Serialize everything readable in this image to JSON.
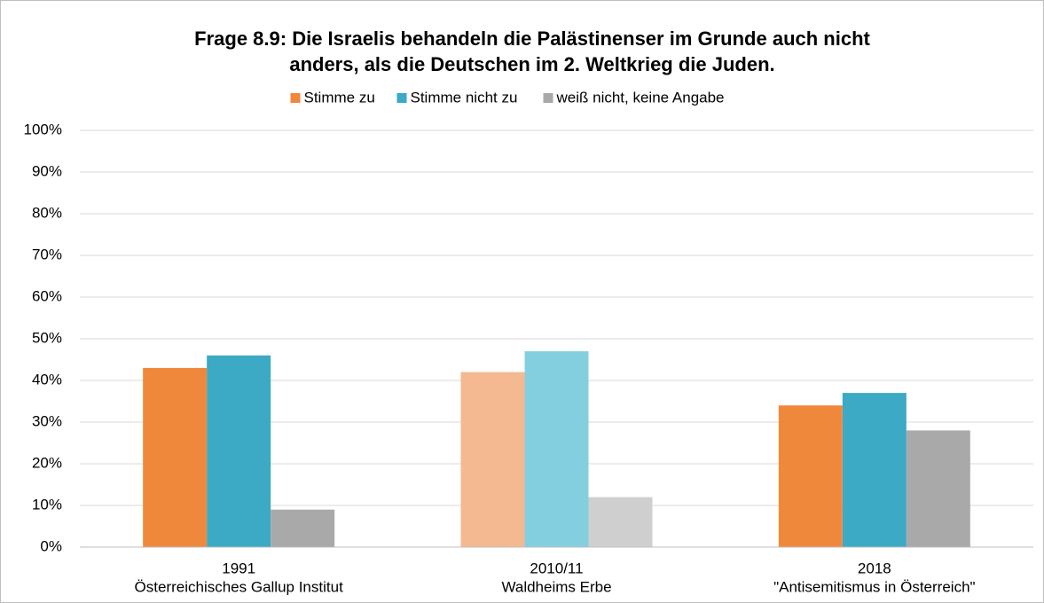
{
  "chart_data": {
    "type": "bar",
    "title": [
      "Frage 8.9: Die Israelis behandeln die Palästinenser im Grunde auch nicht",
      "anders, als die Deutschen im 2. Weltkrieg die Juden."
    ],
    "categories": [
      [
        "1991",
        "Österreichisches Gallup Institut"
      ],
      [
        "2010/11",
        "Waldheims Erbe"
      ],
      [
        "2018",
        "\"Antisemitismus in Österreich\""
      ]
    ],
    "series": [
      {
        "name": "Stimme zu",
        "color": "#f0883c",
        "colors": [
          "#f0883c",
          "#f4b990",
          "#f0883c"
        ],
        "values": [
          43,
          42,
          34
        ]
      },
      {
        "name": "Stimme nicht zu",
        "color": "#3ca9c5",
        "colors": [
          "#3ca9c5",
          "#84cfdf",
          "#3ca9c5"
        ],
        "values": [
          46,
          47,
          37
        ]
      },
      {
        "name": "weiß nicht, keine Angabe",
        "color": "#a9a9a9",
        "colors": [
          "#a9a9a9",
          "#cfcfcf",
          "#a9a9a9"
        ],
        "values": [
          9,
          12,
          28
        ]
      }
    ],
    "ylim": [
      0,
      100
    ],
    "yticks": [
      {
        "value": 0,
        "label": "0%"
      },
      {
        "value": 10,
        "label": "10%"
      },
      {
        "value": 20,
        "label": "20%"
      },
      {
        "value": 30,
        "label": "30%"
      },
      {
        "value": 40,
        "label": "40%"
      },
      {
        "value": 50,
        "label": "50%"
      },
      {
        "value": 60,
        "label": "60%"
      },
      {
        "value": 70,
        "label": "70%"
      },
      {
        "value": 80,
        "label": "80%"
      },
      {
        "value": 90,
        "label": "90%"
      },
      {
        "value": 100,
        "label": "100%"
      }
    ],
    "grid": true,
    "legend": "top"
  }
}
